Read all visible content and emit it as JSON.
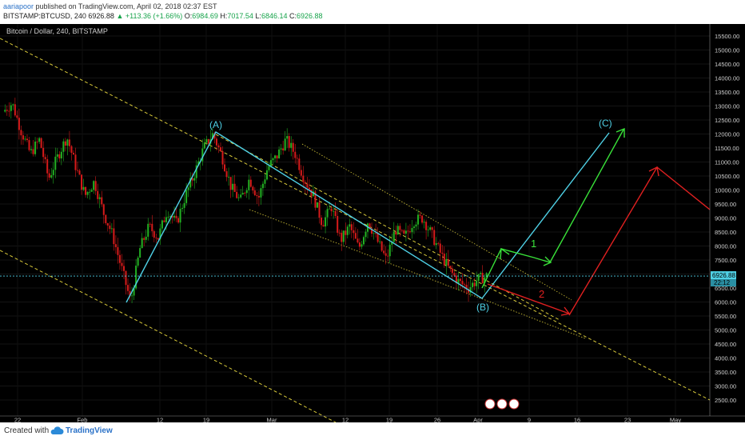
{
  "header": {
    "author": "aariapoor",
    "published": "published on TradingView.com, April 02, 2018 02:37 EST",
    "symbol": "BITSTAMP:BTCUSD, 240",
    "last": "6926.88",
    "change": "+113.36 (+1.66%)",
    "o_label": "O:",
    "o": "6984.69",
    "h_label": "H:",
    "h": "7017.54",
    "l_label": "L:",
    "l": "6846.14",
    "c_label": "C:",
    "c": "6926.88"
  },
  "footer": {
    "created": "Created with",
    "brand": "TradingView"
  },
  "colors": {
    "background": "#000000",
    "candle_up": "#22b022",
    "candle_down": "#d61a1a",
    "wave_cyan": "#4fd1e6",
    "projection_green": "#39e239",
    "projection_red": "#e02020",
    "channel_yellow": "#d8c93a"
  },
  "chart_data": {
    "type": "candlestick",
    "title": "Bitcoin / Dollar, 240, BITSTAMP",
    "ylim": [
      2000,
      16000
    ],
    "y_ticks": [
      "15500.00",
      "15000.00",
      "14500.00",
      "14000.00",
      "13500.00",
      "13000.00",
      "12500.00",
      "12000.00",
      "11500.00",
      "11000.00",
      "10500.00",
      "10000.00",
      "9500.00",
      "9000.00",
      "8500.00",
      "8000.00",
      "7500.00",
      "7000.00",
      "6500.00",
      "6000.00",
      "5500.00",
      "5000.00",
      "4500.00",
      "4000.00",
      "3500.00",
      "3000.00",
      "2500.00"
    ],
    "x_ticks": [
      "22",
      "Feb",
      "12",
      "19",
      "Mar",
      "12",
      "19",
      "26",
      "Apr",
      "9",
      "16",
      "23",
      "May"
    ],
    "last_price_label": "6926.88",
    "countdown_label": "22:12",
    "price_path": [
      12800,
      13100,
      12100,
      11300,
      11800,
      10400,
      11200,
      11900,
      10800,
      9800,
      10300,
      9200,
      8400,
      7200,
      6000,
      7900,
      8700,
      8300,
      9300,
      8800,
      9800,
      10600,
      11500,
      12000,
      11200,
      10100,
      9600,
      10400,
      9700,
      10800,
      11200,
      11800,
      11300,
      10400,
      9800,
      8800,
      9400,
      8200,
      8700,
      7900,
      8900,
      8200,
      7500,
      8600,
      8300,
      8900,
      9000,
      8400,
      7700,
      7100,
      6700,
      6500,
      6800,
      6927
    ],
    "waves": [
      {
        "label": "(A)",
        "value": 12000
      },
      {
        "label": "(B)",
        "value": 6100
      },
      {
        "label": "(C)",
        "value": 12100
      }
    ],
    "scenarios": [
      {
        "label": "1",
        "color": "green"
      },
      {
        "label": "2",
        "color": "red"
      }
    ]
  }
}
